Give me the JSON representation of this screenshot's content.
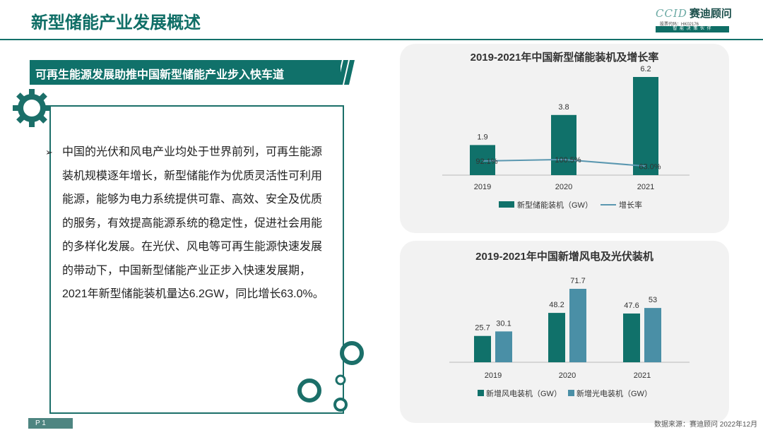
{
  "page_title": "新型储能产业发展概述",
  "logo": {
    "brand_en": "CCID",
    "brand_cn": "赛迪顾问",
    "stock_code": "股票代码：HK02176",
    "slogan": "智 能 决 策 伙 伴"
  },
  "section_heading": "可再生能源发展助推中国新型储能产业步入快车道",
  "body": {
    "bullet": "➢",
    "paragraph": "中国的光伏和风电产业均处于世界前列，可再生能源装机规模逐年增长，新型储能作为优质灵活性可利用能源，能够为电力系统提供可靠、高效、安全及优质的服务，有效提高能源系统的稳定性，促进社会用能的多样化发展。在光伏、风电等可再生能源快速发展的带动下，中国新型储能产业正步入快速发展期，2021年新型储能装机量达6.2GW，同比增长63.0%。"
  },
  "footer": {
    "page_label": "P 1",
    "source": "数据来源：赛迪顾问 2022年12月"
  },
  "colors": {
    "teal": "#10716a",
    "light_blue": "#4a8fa6",
    "line": "#5a97b0"
  },
  "chart_data": [
    {
      "type": "bar",
      "title": "2019-2021年中国新型储能装机及增长率",
      "categories": [
        "2019",
        "2020",
        "2021"
      ],
      "series": [
        {
          "name": "新型储能装机（GW）",
          "type": "bar",
          "values": [
            1.9,
            3.8,
            6.2
          ],
          "labels": [
            "1.9",
            "3.8",
            "6.2"
          ]
        },
        {
          "name": "增长率",
          "type": "line",
          "values": [
            92.1,
            100.5,
            63.0
          ],
          "labels": [
            "92.1%",
            "100.5%",
            "63.0%"
          ]
        }
      ],
      "ylim": [
        0,
        6.2
      ],
      "legend": "bottom",
      "grid": false
    },
    {
      "type": "bar",
      "title": "2019-2021年中国新增风电及光伏装机",
      "categories": [
        "2019",
        "2020",
        "2021"
      ],
      "series": [
        {
          "name": "新增风电装机（GW）",
          "values": [
            25.7,
            48.2,
            47.6
          ],
          "labels": [
            "25.7",
            "48.2",
            "47.6"
          ]
        },
        {
          "name": "新增光电装机（GW）",
          "values": [
            30.1,
            71.7,
            53
          ],
          "labels": [
            "30.1",
            "71.7",
            "53"
          ]
        }
      ],
      "ylim": [
        0,
        71.7
      ],
      "legend": "bottom",
      "grid": false
    }
  ]
}
